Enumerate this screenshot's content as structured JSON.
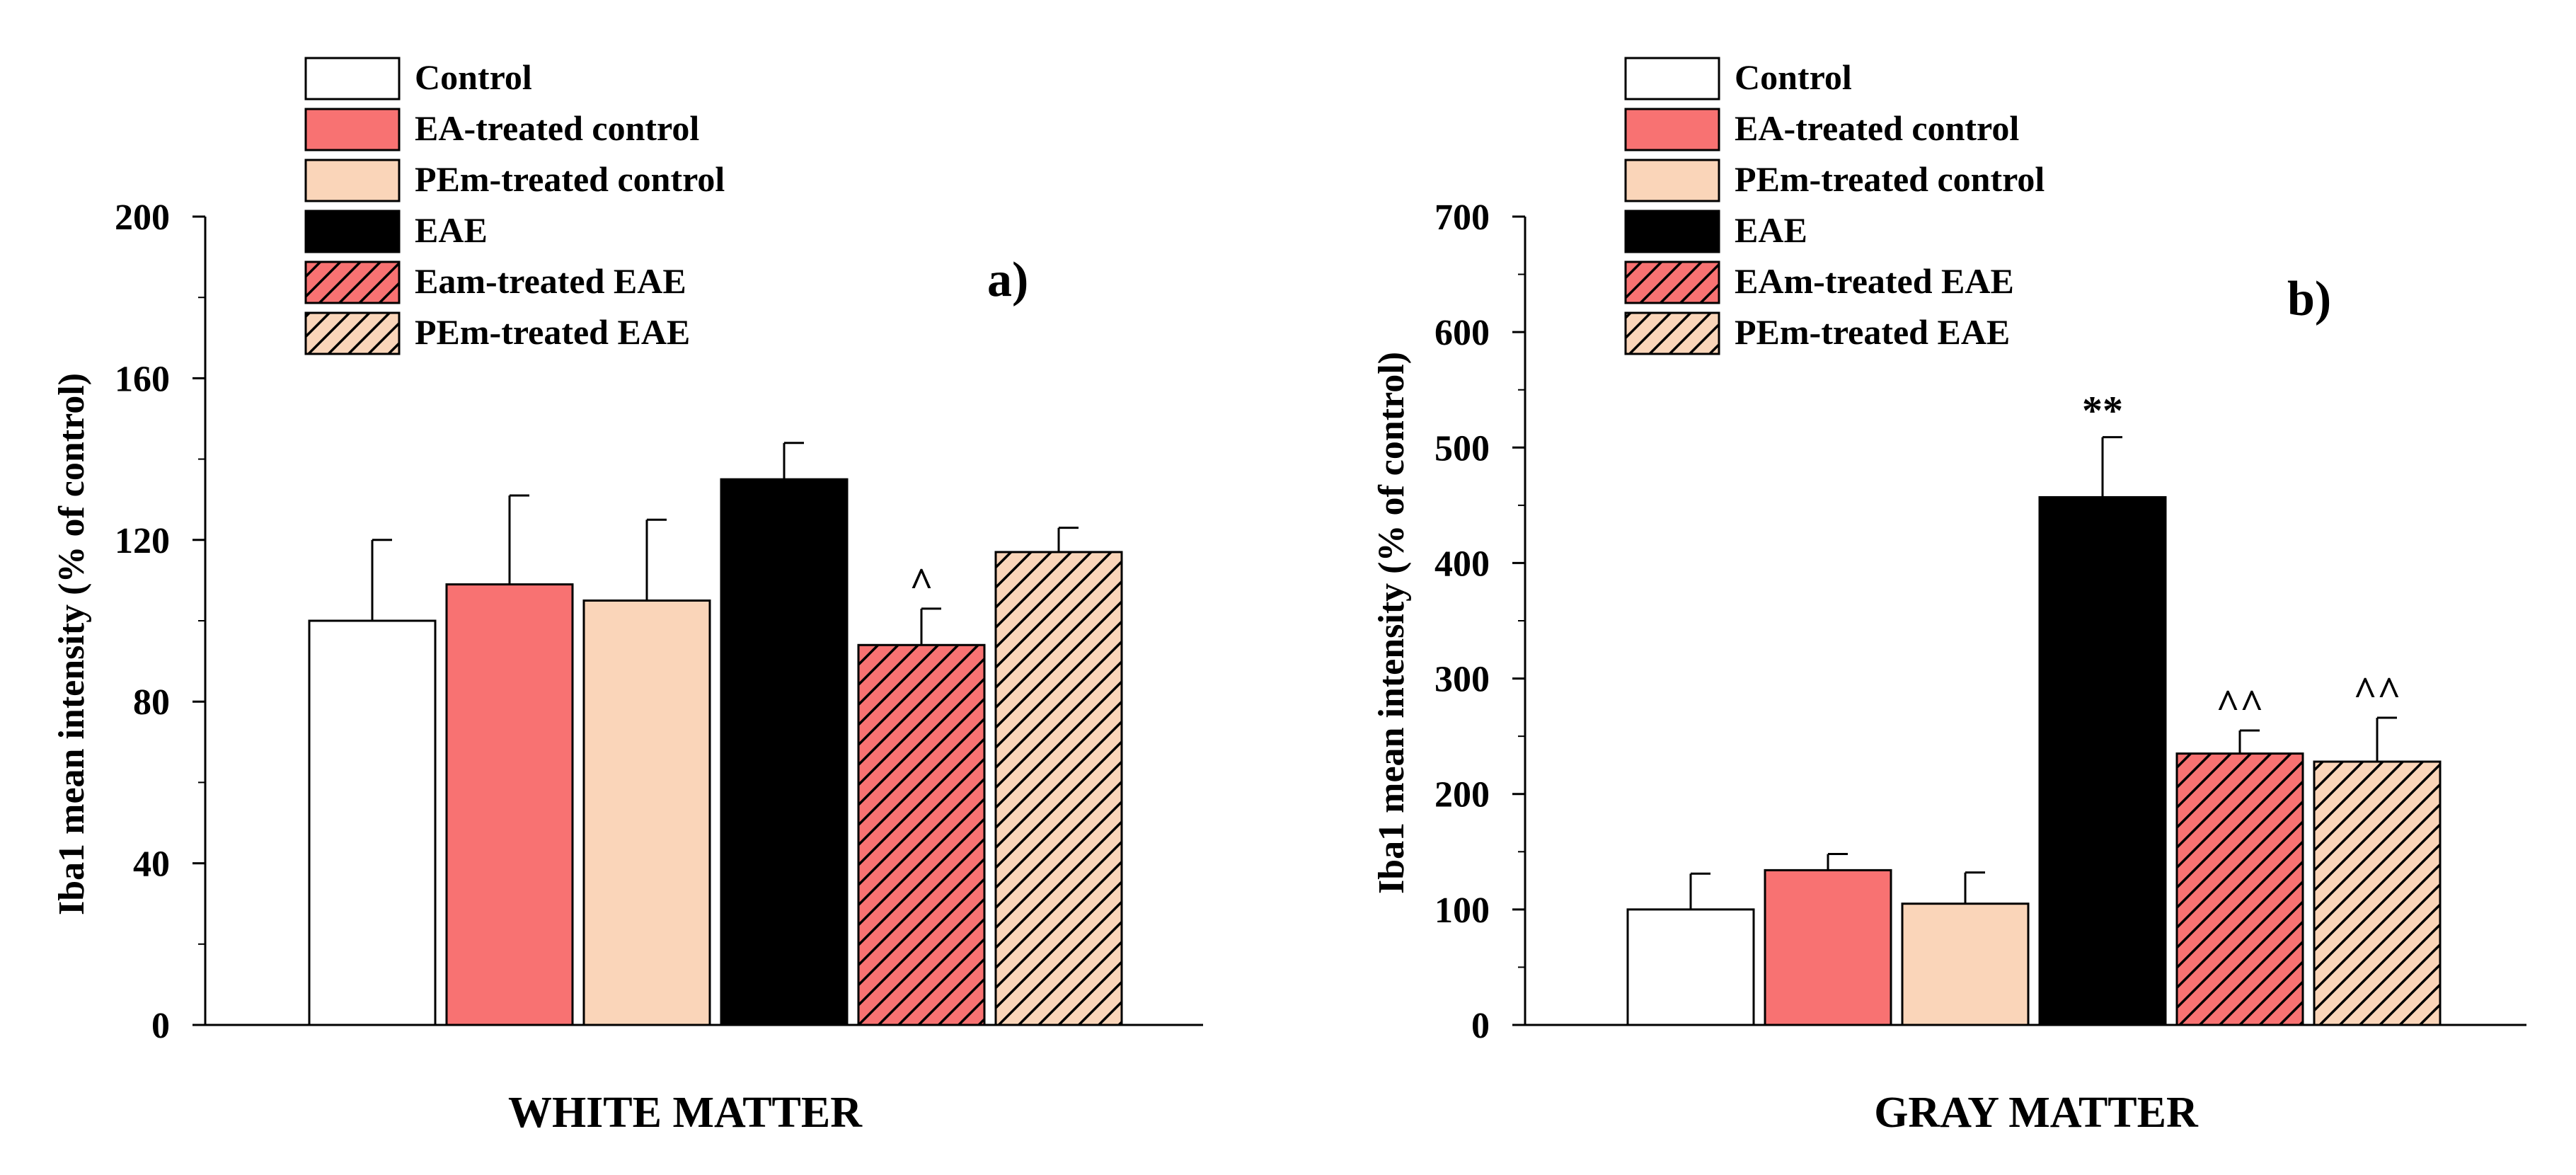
{
  "colors": {
    "control": "#ffffff",
    "ea_control": "#f87272",
    "pem_control": "#fad5b9",
    "eae": "#000000",
    "eam_eae_fill": "#f87272",
    "pem_eae_fill": "#fad5b9",
    "hatch": "#000000",
    "axis": "#000000"
  },
  "chart_data": [
    {
      "type": "bar",
      "panel_label": "a)",
      "title": "",
      "xlabel": "WHITE MATTER",
      "ylabel": "Iba1 mean intensity (% of control)",
      "ylim": [
        0,
        200
      ],
      "yticks": [
        0,
        40,
        80,
        120,
        160,
        200
      ],
      "legend_position": "top-center",
      "grid": false,
      "series": [
        {
          "name": "Control",
          "value": 100,
          "error": 20,
          "annotation": ""
        },
        {
          "name": "EA-treated control",
          "value": 109,
          "error": 22,
          "annotation": ""
        },
        {
          "name": "PEm-treated control",
          "value": 105,
          "error": 20,
          "annotation": ""
        },
        {
          "name": "EAE",
          "value": 135,
          "error": 9,
          "annotation": ""
        },
        {
          "name": "Eam-treated EAE",
          "value": 94,
          "error": 9,
          "annotation": "^"
        },
        {
          "name": "PEm-treated EAE",
          "value": 117,
          "error": 6,
          "annotation": ""
        }
      ]
    },
    {
      "type": "bar",
      "panel_label": "b)",
      "title": "",
      "xlabel": "GRAY MATTER",
      "ylabel": "Iba1  mean intensity (% of control)",
      "ylim": [
        0,
        700
      ],
      "yticks": [
        0,
        100,
        200,
        300,
        400,
        500,
        600,
        700
      ],
      "legend_position": "top-center",
      "grid": false,
      "series": [
        {
          "name": "Control",
          "value": 100,
          "error": 31,
          "annotation": ""
        },
        {
          "name": "EA-treated control",
          "value": 134,
          "error": 14,
          "annotation": ""
        },
        {
          "name": "PEm-treated control",
          "value": 105,
          "error": 27,
          "annotation": ""
        },
        {
          "name": "EAE",
          "value": 457,
          "error": 52,
          "annotation": "**"
        },
        {
          "name": "EAm-treated EAE",
          "value": 235,
          "error": 20,
          "annotation": "^^"
        },
        {
          "name": "PEm-treated EAE",
          "value": 228,
          "error": 38,
          "annotation": "^^"
        }
      ]
    }
  ]
}
